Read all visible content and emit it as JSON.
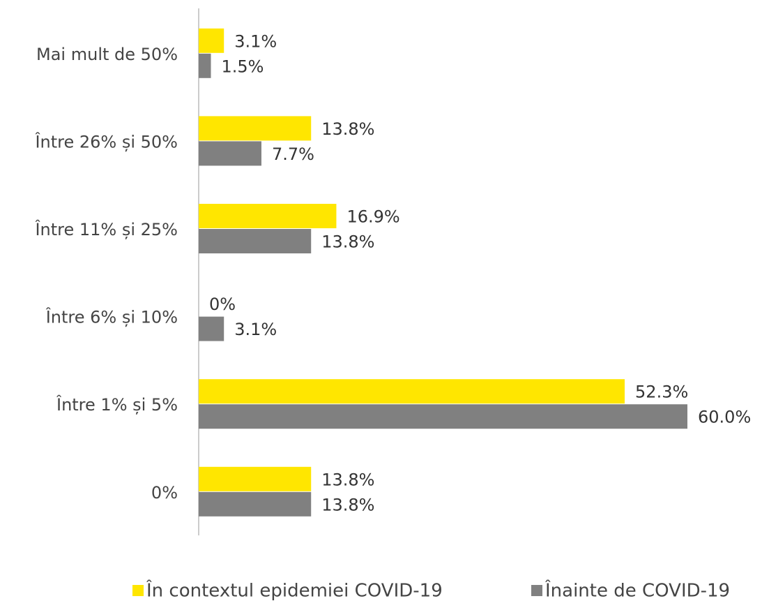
{
  "chart_data": {
    "type": "hbar",
    "categories": [
      "Mai mult de 50%",
      "Între 26% și 50%",
      "Între 11% și 25%",
      "Între 6% și 10%",
      "Între 1% și 5%",
      "0%"
    ],
    "series": [
      {
        "name": "În contextul epidemiei COVID-19",
        "color": "#FFE600",
        "values": [
          3.1,
          13.8,
          16.9,
          0,
          52.3,
          13.8
        ],
        "value_labels": [
          "3.1%",
          "13.8%",
          "16.9%",
          "0%",
          "52.3%",
          "13.8%"
        ]
      },
      {
        "name": "Înainte de COVID-19",
        "color": "#808080",
        "values": [
          1.5,
          7.7,
          13.8,
          3.1,
          60.0,
          13.8
        ],
        "value_labels": [
          "1.5%",
          "7.7%",
          "13.8%",
          "3.1%",
          "60.0%",
          "13.8%"
        ]
      }
    ],
    "legend": "bottom"
  }
}
